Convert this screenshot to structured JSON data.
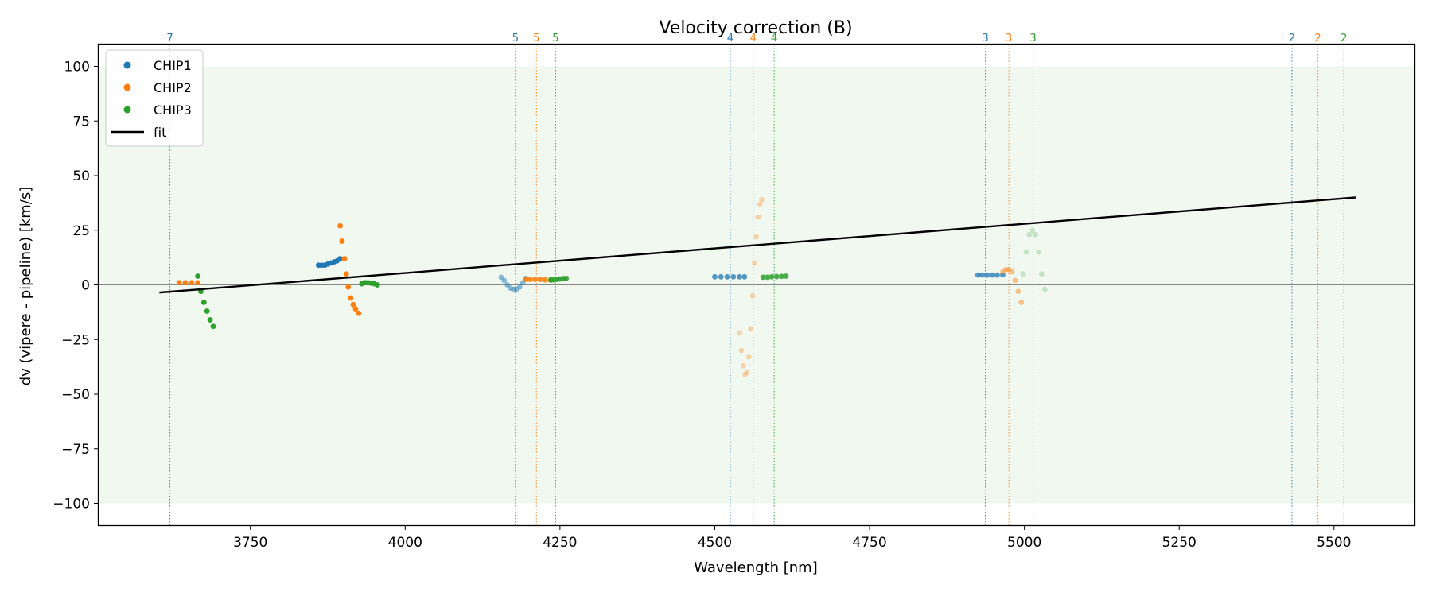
{
  "chart_data": {
    "type": "scatter",
    "title": "Velocity correction (B)",
    "xlabel": "Wavelength [nm]",
    "ylabel": "dv (vipere - pipeline) [km/s]",
    "xlim": [
      3505,
      5630
    ],
    "ylim": [
      -110,
      110
    ],
    "xticks": [
      3750,
      4000,
      4250,
      4500,
      4750,
      5000,
      5250,
      5500
    ],
    "yticks": [
      -100,
      -75,
      -50,
      -25,
      0,
      25,
      50,
      75,
      100
    ],
    "xtick_labels": [
      "3750",
      "4000",
      "4250",
      "4500",
      "4750",
      "5000",
      "5250",
      "5500"
    ],
    "ytick_labels": [
      "−100",
      "−75",
      "−50",
      "−25",
      "0",
      "25",
      "50",
      "75",
      "100"
    ],
    "band": {
      "y0": -100,
      "y1": 100,
      "color": "#2ca02c"
    },
    "zero_line": 0,
    "colors": {
      "CHIP1": "#1f77b4",
      "CHIP2": "#ff7f0e",
      "CHIP3": "#2ca02c",
      "fit": "#000000"
    },
    "legend": {
      "location": "top-left",
      "entries": [
        {
          "label": "CHIP1",
          "kind": "marker",
          "color": "#1f77b4"
        },
        {
          "label": "CHIP2",
          "kind": "marker",
          "color": "#ff7f0e"
        },
        {
          "label": "CHIP3",
          "kind": "marker",
          "color": "#2ca02c"
        },
        {
          "label": "fit",
          "kind": "line",
          "color": "#000000"
        }
      ]
    },
    "order_markers": [
      {
        "x": 3620,
        "label": "7",
        "chip": "CHIP1"
      },
      {
        "x": 4178,
        "label": "5",
        "chip": "CHIP1"
      },
      {
        "x": 4212,
        "label": "5",
        "chip": "CHIP2"
      },
      {
        "x": 4243,
        "label": "5",
        "chip": "CHIP3"
      },
      {
        "x": 4525,
        "label": "4",
        "chip": "CHIP1"
      },
      {
        "x": 4562,
        "label": "4",
        "chip": "CHIP2"
      },
      {
        "x": 4596,
        "label": "4",
        "chip": "CHIP3"
      },
      {
        "x": 4937,
        "label": "3",
        "chip": "CHIP1"
      },
      {
        "x": 4975,
        "label": "3",
        "chip": "CHIP2"
      },
      {
        "x": 5014,
        "label": "3",
        "chip": "CHIP3"
      },
      {
        "x": 5432,
        "label": "2",
        "chip": "CHIP1"
      },
      {
        "x": 5474,
        "label": "2",
        "chip": "CHIP2"
      },
      {
        "x": 5516,
        "label": "2",
        "chip": "CHIP3"
      }
    ],
    "fit": {
      "x": [
        3603,
        5535
      ],
      "y": [
        -3.5,
        40
      ]
    },
    "series": [
      {
        "name": "CHIP2",
        "order": "7",
        "alpha": 1.0,
        "x": [
          3635,
          3645,
          3655,
          3665
        ],
        "y": [
          1,
          1,
          1,
          1
        ]
      },
      {
        "name": "CHIP3",
        "order": "7",
        "alpha": 1.0,
        "x": [
          3665,
          3670,
          3675,
          3680,
          3685,
          3690
        ],
        "y": [
          4,
          -3,
          -8,
          -12,
          -16,
          -19
        ]
      },
      {
        "name": "CHIP1",
        "order": "6",
        "alpha": 1.0,
        "x": [
          3860,
          3865,
          3870,
          3875,
          3880,
          3885,
          3890,
          3895
        ],
        "y": [
          9,
          9,
          9,
          9.5,
          10,
          10.5,
          11,
          12
        ]
      },
      {
        "name": "CHIP2",
        "order": "6",
        "alpha": 1.0,
        "x": [
          3895,
          3898,
          3902,
          3905,
          3908,
          3912,
          3916,
          3920,
          3925
        ],
        "y": [
          27,
          20,
          12,
          5,
          -1,
          -6,
          -9,
          -11,
          -13
        ]
      },
      {
        "name": "CHIP3",
        "order": "6",
        "alpha": 1.0,
        "x": [
          3930,
          3935,
          3940,
          3945,
          3950,
          3955
        ],
        "y": [
          0.5,
          1,
          1,
          0.8,
          0.5,
          0
        ]
      },
      {
        "name": "CHIP1",
        "order": "5",
        "alpha": 0.5,
        "x": [
          4155,
          4160,
          4165,
          4170,
          4175,
          4180,
          4185,
          4190,
          4195
        ],
        "y": [
          3.5,
          2,
          0,
          -1.5,
          -2,
          -2,
          -1,
          1,
          3
        ]
      },
      {
        "name": "CHIP2",
        "order": "5",
        "alpha": 0.9,
        "x": [
          4195,
          4202,
          4210,
          4218,
          4226,
          4235
        ],
        "y": [
          2.5,
          2.5,
          2.5,
          2.5,
          2.3,
          2.2
        ]
      },
      {
        "name": "CHIP3",
        "order": "5",
        "alpha": 0.9,
        "x": [
          4235,
          4240,
          4245,
          4250,
          4255,
          4260
        ],
        "y": [
          2.3,
          2.3,
          2.5,
          2.7,
          2.9,
          3
        ]
      },
      {
        "name": "CHIP1",
        "order": "4",
        "alpha": 0.75,
        "x": [
          4500,
          4510,
          4520,
          4530,
          4540,
          4548
        ],
        "y": [
          3.7,
          3.7,
          3.7,
          3.7,
          3.7,
          3.7
        ]
      },
      {
        "name": "CHIP2",
        "order": "4",
        "alpha": 0.3,
        "x": [
          4540,
          4543,
          4546,
          4549,
          4552,
          4555,
          4558,
          4561,
          4564,
          4567,
          4570,
          4573,
          4576
        ],
        "y": [
          -22,
          -30,
          -37,
          -41,
          -40,
          -33,
          -20,
          -5,
          10,
          22,
          31,
          37,
          39
        ]
      },
      {
        "name": "CHIP3",
        "order": "4",
        "alpha": 0.85,
        "x": [
          4578,
          4585,
          4592,
          4600,
          4608,
          4615
        ],
        "y": [
          3.5,
          3.5,
          3.7,
          3.8,
          3.9,
          4
        ]
      },
      {
        "name": "CHIP1",
        "order": "3",
        "alpha": 0.75,
        "x": [
          4925,
          4932,
          4940,
          4948,
          4956,
          4965
        ],
        "y": [
          4.5,
          4.5,
          4.5,
          4.5,
          4.5,
          4.6
        ]
      },
      {
        "name": "CHIP2",
        "order": "3",
        "alpha": 0.45,
        "x": [
          4965,
          4970,
          4975,
          4980,
          4985,
          4990,
          4995
        ],
        "y": [
          6,
          7,
          7,
          6,
          2,
          -3,
          -8
        ]
      },
      {
        "name": "CHIP3",
        "order": "3",
        "alpha": 0.22,
        "x": [
          4998,
          5003,
          5008,
          5013,
          5018,
          5023,
          5028,
          5033
        ],
        "y": [
          5,
          15,
          23,
          25,
          23,
          15,
          5,
          -2
        ]
      }
    ]
  }
}
